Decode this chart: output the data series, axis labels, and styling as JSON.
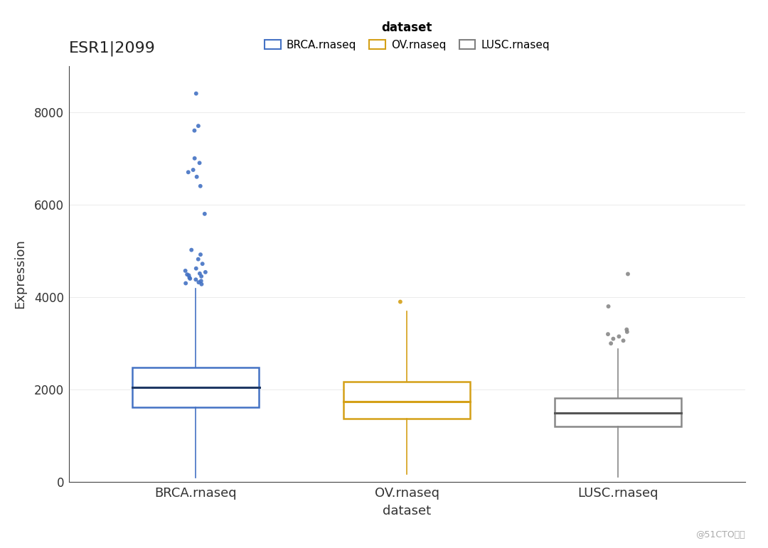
{
  "title": "ESR1|2099",
  "xlabel": "dataset",
  "ylabel": "Expression",
  "watermark": "@51CTO博客",
  "background_color": "#ffffff",
  "plot_bg_color": "#ffffff",
  "categories": [
    "BRCA.rnaseq",
    "OV.rnaseq",
    "LUSC.rnaseq"
  ],
  "colors": [
    "#4472C4",
    "#D4A017",
    "#808080"
  ],
  "ylim": [
    0,
    9000
  ],
  "yticks": [
    0,
    2000,
    4000,
    6000,
    8000
  ],
  "legend_label": "dataset",
  "boxes": [
    {
      "label": "BRCA.rnaseq",
      "color": "#4472C4",
      "median_color": "#1F3864",
      "q1": 1620,
      "q3": 2480,
      "median": 2050,
      "whisker_low": 100,
      "whisker_high": 4180,
      "outliers": [
        4280,
        4300,
        4320,
        4350,
        4380,
        4400,
        4420,
        4450,
        4470,
        4490,
        4510,
        4540,
        4570,
        4620,
        4720,
        4820,
        4920,
        5020,
        5800,
        6400,
        6600,
        6700,
        6750,
        6900,
        7000,
        7600,
        7700,
        8400
      ]
    },
    {
      "label": "OV.rnaseq",
      "color": "#D4A017",
      "median_color": "#D4A017",
      "q1": 1380,
      "q3": 2180,
      "median": 1750,
      "whisker_low": 180,
      "whisker_high": 3700,
      "outliers": [
        3900
      ]
    },
    {
      "label": "LUSC.rnaseq",
      "color": "#888888",
      "median_color": "#555555",
      "q1": 1200,
      "q3": 1820,
      "median": 1490,
      "whisker_low": 120,
      "whisker_high": 2880,
      "outliers": [
        3000,
        3060,
        3100,
        3150,
        3200,
        3250,
        3300,
        3800,
        4500
      ]
    }
  ]
}
